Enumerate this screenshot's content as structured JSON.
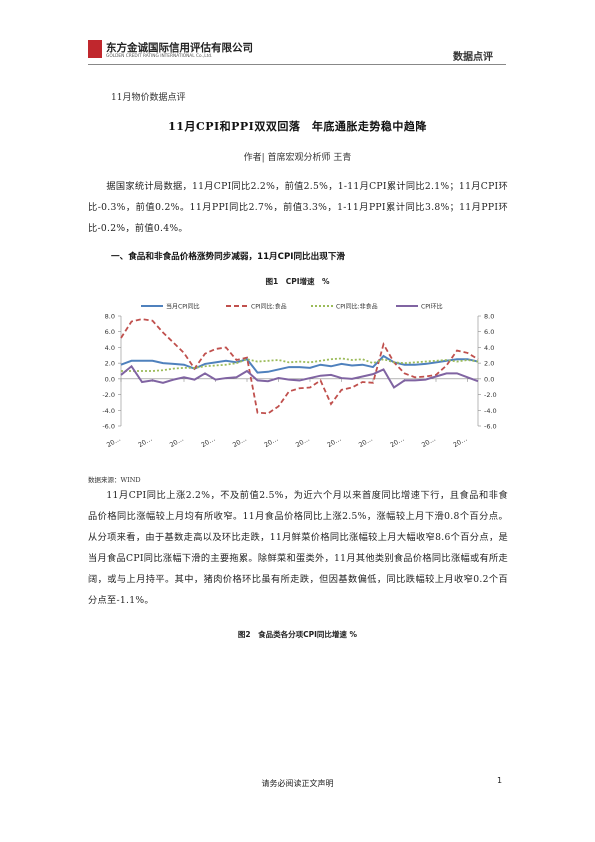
{
  "header": {
    "company": "东方金诚国际信用评估有限公司",
    "company_en": "GOLDEN CREDIT RATING INTERNATIONAL Co.,Ltd.",
    "section": "数据点评"
  },
  "doc": {
    "kicker": "11月物价数据点评",
    "title": "11月CPI和PPI双双回落　年底通胀走势稳中趋降",
    "author": "作者| 首席宏观分析师 王青",
    "paragraph1": "据国家统计局数据，11月CPI同比2.2%，前值2.5%，1-11月CPI累计同比2.1%；11月CPI环比-0.3%，前值0.2%。11月PPI同比2.7%，前值3.3%，1-11月PPI累计同比3.8%；11月PPI环比-0.2%，前值0.4%。",
    "heading1": "一、食品和非食品价格涨势同步减弱，11月CPI同比出现下滑",
    "figure1_caption": "图1　CPI增速　%",
    "source": "数据来源：WIND",
    "paragraph2": "11月CPI同比上涨2.2%，不及前值2.5%，为近六个月以来首度同比增速下行，且食品和非食品价格同比涨幅较上月均有所收窄。11月食品价格同比上涨2.5%，涨幅较上月下滑0.8个百分点。从分项来看，由于基数走高以及环比走跌，11月鲜菜价格同比涨幅较上月大幅收窄8.6个百分点，是当月食品CPI同比涨幅下滑的主要拖累。除鲜菜和蛋类外，11月其他类别食品价格同比涨幅或有所走阔，或与上月持平。其中，猪肉价格环比虽有所走跌，但因基数偏低，同比跌幅较上月收窄0.2个百分点至-1.1%。",
    "figure2_caption": "图2　食品类各分项CPI同比增速 %"
  },
  "footer": {
    "notice": "请务必阅读正文声明",
    "page": "1"
  },
  "chart_data": {
    "type": "line",
    "categories": [
      "20…",
      null,
      null,
      "20…",
      null,
      null,
      "20…",
      null,
      null,
      "20…",
      null,
      null,
      "20…",
      null,
      null,
      "20…",
      null,
      null,
      "20…",
      null,
      null,
      "20…",
      null,
      null,
      "20…",
      null,
      null,
      "20…",
      null,
      null,
      "20…",
      null,
      null,
      "20…",
      null
    ],
    "series": [
      {
        "name": "当月CPI同比",
        "color": "#4f81bd",
        "style": "solid",
        "values": [
          1.8,
          2.3,
          2.3,
          2.3,
          2.0,
          1.9,
          1.8,
          1.3,
          1.9,
          2.1,
          2.3,
          2.1,
          2.5,
          0.8,
          0.9,
          1.2,
          1.5,
          1.5,
          1.4,
          1.8,
          1.6,
          1.9,
          1.7,
          1.8,
          1.5,
          2.9,
          2.1,
          1.8,
          1.8,
          1.9,
          2.1,
          2.3,
          2.5,
          2.5,
          2.2
        ]
      },
      {
        "name": "CPI同比:食品",
        "color": "#c0504d",
        "style": "dashed",
        "values": [
          5.2,
          7.3,
          7.6,
          7.4,
          5.9,
          4.6,
          3.3,
          1.3,
          3.2,
          3.8,
          4.0,
          2.4,
          2.7,
          -4.3,
          -4.4,
          -3.5,
          -1.6,
          -1.2,
          -1.1,
          -0.2,
          -3.2,
          -1.4,
          -1.1,
          -0.4,
          -0.5,
          4.4,
          2.1,
          0.7,
          0.2,
          0.3,
          0.5,
          1.7,
          3.6,
          3.3,
          2.5
        ]
      },
      {
        "name": "CPI同比:非食品",
        "color": "#9bbb59",
        "style": "dotted",
        "values": [
          1.0,
          1.0,
          1.0,
          1.0,
          1.1,
          1.3,
          1.4,
          1.4,
          1.6,
          1.7,
          1.8,
          2.0,
          2.5,
          2.2,
          2.3,
          2.4,
          2.1,
          2.2,
          2.1,
          2.3,
          2.5,
          2.6,
          2.4,
          2.5,
          2.0,
          2.5,
          2.1,
          2.0,
          2.1,
          2.2,
          2.3,
          2.4,
          2.2,
          2.4,
          2.2
        ]
      },
      {
        "name": "CPI环比",
        "color": "#8064a2",
        "style": "solid",
        "axis": "y2",
        "values": [
          0.5,
          1.6,
          -0.4,
          -0.2,
          -0.5,
          -0.1,
          0.2,
          -0.1,
          0.7,
          -0.1,
          0.1,
          0.2,
          1.0,
          -0.2,
          -0.3,
          0.1,
          -0.1,
          -0.2,
          0.1,
          0.4,
          0.5,
          0.1,
          0.0,
          0.3,
          0.6,
          1.2,
          -1.1,
          -0.2,
          -0.2,
          -0.1,
          0.3,
          0.7,
          0.7,
          0.2,
          -0.3
        ]
      }
    ],
    "ylim": [
      -6,
      8
    ],
    "yticks": [
      {
        "value": -6,
        "label": "-6.0"
      },
      {
        "value": -4,
        "label": "-4.0"
      },
      {
        "value": -2,
        "label": "-2.0"
      },
      {
        "value": 0,
        "label": "0.0"
      },
      {
        "value": 2,
        "label": "2.0"
      },
      {
        "value": 4,
        "label": "4.0"
      },
      {
        "value": 6,
        "label": "6.0"
      },
      {
        "value": 8,
        "label": "8.0"
      }
    ],
    "y2lim": [
      -6,
      8
    ],
    "y2ticks": [
      {
        "value": -6,
        "label": "-6.0"
      },
      {
        "value": -4,
        "label": "-4.0"
      },
      {
        "value": -2,
        "label": "-2.0"
      },
      {
        "value": 0,
        "label": "0.0"
      },
      {
        "value": 2,
        "label": "2.0"
      },
      {
        "value": 4,
        "label": "4.0"
      },
      {
        "value": 6,
        "label": "6.0"
      },
      {
        "value": 8,
        "label": "8.0"
      }
    ],
    "grid": false
  }
}
